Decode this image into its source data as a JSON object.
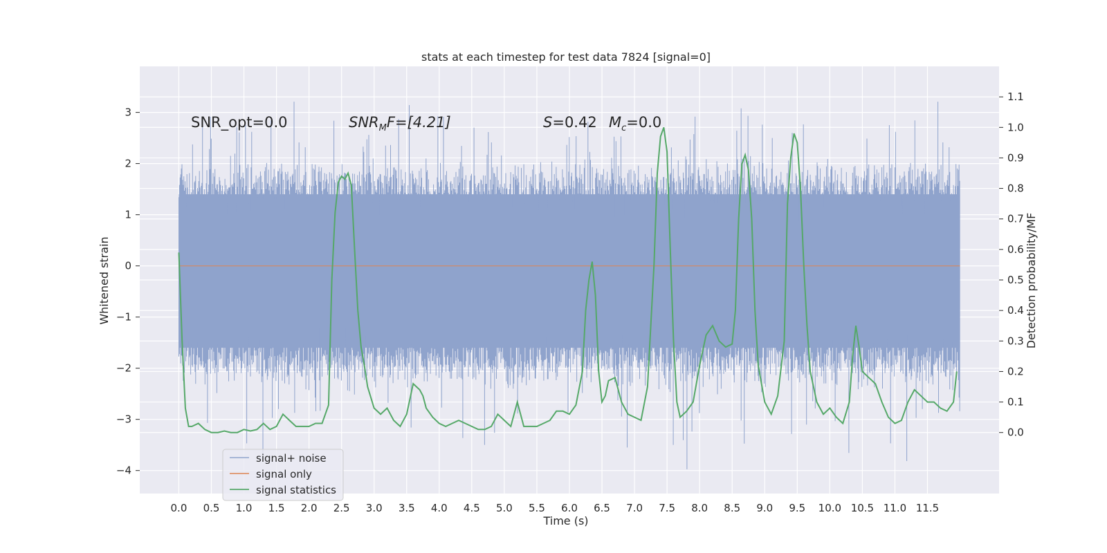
{
  "chart_data": {
    "type": "line",
    "title": "stats at each timestep for test data 7824 [signal=0]",
    "xlabel": "Time (s)",
    "ylabel": "Whitened strain",
    "y2label": "Detection probability/MF",
    "xlim": [
      -0.6,
      12.6
    ],
    "ylim": [
      -4.45,
      3.9
    ],
    "y2lim": [
      -0.2,
      1.2
    ],
    "xticks": [
      0.0,
      0.5,
      1.0,
      1.5,
      2.0,
      2.5,
      3.0,
      3.5,
      4.0,
      4.5,
      5.0,
      5.5,
      6.0,
      6.5,
      7.0,
      7.5,
      8.0,
      8.5,
      9.0,
      9.5,
      10.0,
      10.5,
      11.0,
      11.5
    ],
    "xtick_labels": [
      "0.0",
      "0.5",
      "1.0",
      "1.5",
      "2.0",
      "2.5",
      "3.0",
      "3.5",
      "4.0",
      "4.5",
      "5.0",
      "5.5",
      "6.0",
      "6.5",
      "7.0",
      "7.5",
      "8.0",
      "8.5",
      "9.0",
      "9.5",
      "10.0",
      "10.5",
      "11.0",
      "11.5"
    ],
    "yticks": [
      -4,
      -3,
      -2,
      -1,
      0,
      1,
      2,
      3
    ],
    "ytick_labels": [
      "−4",
      "−3",
      "−2",
      "−1",
      "0",
      "1",
      "2",
      "3"
    ],
    "y2ticks": [
      0.0,
      0.1,
      0.2,
      0.3,
      0.4,
      0.5,
      0.6,
      0.7,
      0.8,
      0.9,
      1.0,
      1.1
    ],
    "y2tick_labels": [
      "0.0",
      "0.1",
      "0.2",
      "0.3",
      "0.4",
      "0.5",
      "0.6",
      "0.7",
      "0.8",
      "0.9",
      "1.0",
      "1.1"
    ],
    "annotations": {
      "snr_opt": "SNR_opt=0.0",
      "snr_mf_sym": "SNR",
      "snr_mf_sub": "M",
      "snr_mf_rest": "F=[4.21]",
      "s_sym": "S",
      "s_val": "=0.42",
      "mc_sym": "M",
      "mc_sub": "c",
      "mc_val": "=0.0"
    },
    "legend": {
      "placement": "lower-left",
      "entries": [
        "signal+ noise",
        "signal only",
        "signal statistics"
      ]
    },
    "colors": {
      "background": "#eaeaf2",
      "grid": "#ffffff",
      "noise": "#8fa3cc",
      "signal": "#dd8452",
      "stats": "#55a868"
    },
    "series": [
      {
        "name": "signal+ noise",
        "kind": "noise-band",
        "x_range": [
          0.0,
          12.0
        ],
        "envelope_low": -2.2,
        "envelope_high": 1.9,
        "spike_min": -4.1,
        "spike_max": 3.55
      },
      {
        "name": "signal only",
        "x": [
          0.0,
          12.0
        ],
        "y": [
          0.0,
          0.0
        ]
      },
      {
        "name": "signal statistics",
        "axis": "right",
        "x": [
          0.0,
          0.05,
          0.1,
          0.15,
          0.2,
          0.3,
          0.4,
          0.5,
          0.6,
          0.7,
          0.8,
          0.9,
          1.0,
          1.1,
          1.2,
          1.3,
          1.4,
          1.5,
          1.6,
          1.7,
          1.8,
          1.9,
          2.0,
          2.1,
          2.2,
          2.3,
          2.35,
          2.4,
          2.45,
          2.5,
          2.55,
          2.6,
          2.65,
          2.7,
          2.75,
          2.8,
          2.85,
          2.9,
          3.0,
          3.1,
          3.2,
          3.3,
          3.4,
          3.5,
          3.6,
          3.7,
          3.75,
          3.8,
          3.9,
          4.0,
          4.1,
          4.2,
          4.3,
          4.4,
          4.5,
          4.6,
          4.7,
          4.8,
          4.9,
          5.0,
          5.1,
          5.2,
          5.3,
          5.4,
          5.5,
          5.6,
          5.7,
          5.8,
          5.9,
          6.0,
          6.1,
          6.2,
          6.25,
          6.3,
          6.35,
          6.4,
          6.45,
          6.5,
          6.55,
          6.6,
          6.7,
          6.8,
          6.9,
          7.0,
          7.1,
          7.2,
          7.3,
          7.35,
          7.4,
          7.45,
          7.5,
          7.55,
          7.6,
          7.65,
          7.7,
          7.8,
          7.9,
          8.0,
          8.1,
          8.2,
          8.3,
          8.4,
          8.5,
          8.55,
          8.6,
          8.65,
          8.7,
          8.75,
          8.8,
          8.85,
          8.9,
          9.0,
          9.1,
          9.2,
          9.3,
          9.35,
          9.4,
          9.45,
          9.5,
          9.55,
          9.6,
          9.65,
          9.7,
          9.8,
          9.9,
          10.0,
          10.1,
          10.2,
          10.3,
          10.35,
          10.4,
          10.45,
          10.5,
          10.6,
          10.7,
          10.8,
          10.9,
          11.0,
          11.1,
          11.2,
          11.3,
          11.4,
          11.5,
          11.6,
          11.7,
          11.8,
          11.9,
          11.95
        ],
        "y": [
          0.59,
          0.3,
          0.08,
          0.02,
          0.02,
          0.03,
          0.01,
          0.0,
          0.0,
          0.005,
          0.0,
          0.0,
          0.01,
          0.005,
          0.01,
          0.03,
          0.01,
          0.02,
          0.06,
          0.04,
          0.02,
          0.02,
          0.02,
          0.03,
          0.03,
          0.09,
          0.5,
          0.72,
          0.82,
          0.84,
          0.83,
          0.85,
          0.81,
          0.6,
          0.4,
          0.28,
          0.22,
          0.15,
          0.08,
          0.06,
          0.08,
          0.04,
          0.02,
          0.06,
          0.16,
          0.14,
          0.12,
          0.08,
          0.05,
          0.03,
          0.02,
          0.03,
          0.04,
          0.03,
          0.02,
          0.01,
          0.01,
          0.02,
          0.06,
          0.04,
          0.02,
          0.1,
          0.02,
          0.02,
          0.02,
          0.03,
          0.04,
          0.07,
          0.07,
          0.06,
          0.09,
          0.2,
          0.4,
          0.5,
          0.56,
          0.45,
          0.2,
          0.1,
          0.12,
          0.17,
          0.18,
          0.1,
          0.06,
          0.05,
          0.04,
          0.15,
          0.55,
          0.85,
          0.97,
          1.0,
          0.92,
          0.6,
          0.3,
          0.1,
          0.05,
          0.07,
          0.1,
          0.22,
          0.32,
          0.35,
          0.3,
          0.28,
          0.29,
          0.4,
          0.7,
          0.88,
          0.91,
          0.86,
          0.7,
          0.4,
          0.22,
          0.1,
          0.06,
          0.12,
          0.3,
          0.75,
          0.9,
          0.98,
          0.95,
          0.8,
          0.55,
          0.35,
          0.2,
          0.1,
          0.06,
          0.08,
          0.05,
          0.03,
          0.1,
          0.25,
          0.35,
          0.28,
          0.2,
          0.18,
          0.16,
          0.1,
          0.05,
          0.03,
          0.04,
          0.1,
          0.14,
          0.12,
          0.1,
          0.1,
          0.08,
          0.07,
          0.1,
          0.2
        ]
      }
    ]
  }
}
